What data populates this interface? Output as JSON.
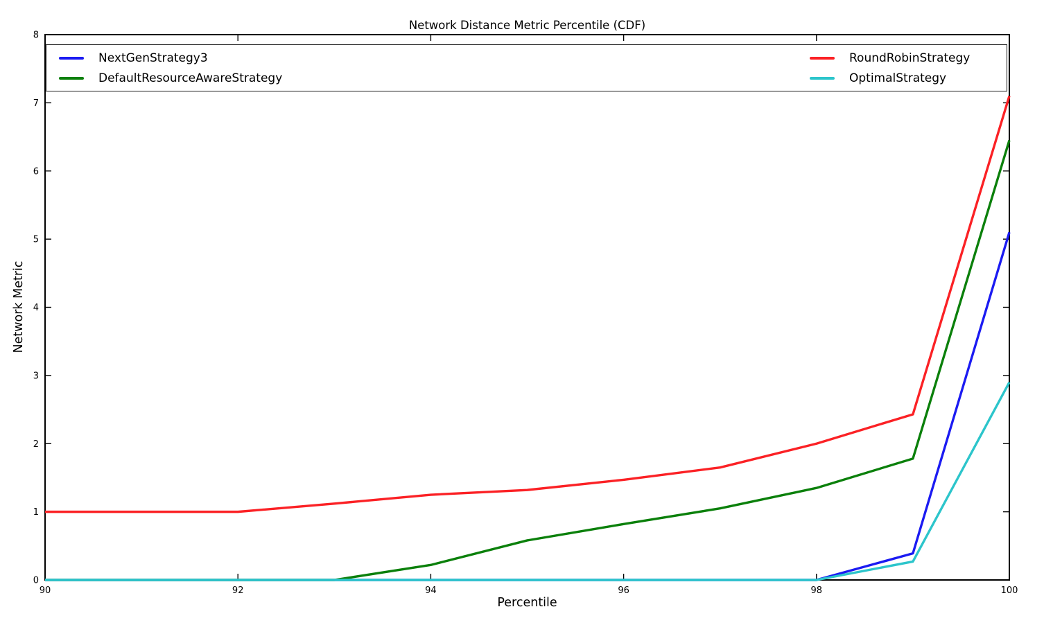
{
  "chart_data": {
    "type": "line",
    "title": "Network Distance Metric Percentile (CDF)",
    "xlabel": "Percentile",
    "ylabel": "Network Metric",
    "xlim": [
      90,
      100
    ],
    "ylim": [
      0,
      8
    ],
    "x_ticks": [
      90,
      92,
      94,
      96,
      98,
      100
    ],
    "y_ticks": [
      0,
      1,
      2,
      3,
      4,
      5,
      6,
      7,
      8
    ],
    "grid": false,
    "legend_position": "top-inside, full plot width, two columns",
    "x": [
      90,
      91,
      92,
      93,
      94,
      95,
      96,
      97,
      98,
      99,
      100
    ],
    "series": [
      {
        "name": "NextGenStrategy3",
        "color": "#1b1bf2",
        "values": [
          0,
          0,
          0,
          0,
          0,
          0,
          0,
          0,
          0,
          0.39,
          5.1
        ]
      },
      {
        "name": "DefaultResourceAwareStrategy",
        "color": "#0b800b",
        "values": [
          0,
          0,
          0,
          0,
          0.22,
          0.58,
          0.82,
          1.05,
          1.35,
          1.78,
          6.45
        ]
      },
      {
        "name": "RoundRobinStrategy",
        "color": "#fb2125",
        "values": [
          1.0,
          1.0,
          1.0,
          1.12,
          1.25,
          1.32,
          1.47,
          1.65,
          2.0,
          2.43,
          7.1
        ]
      },
      {
        "name": "OptimalStrategy",
        "color": "#2cc5cb",
        "values": [
          0,
          0,
          0,
          0,
          0,
          0,
          0,
          0,
          0,
          0.27,
          2.9
        ]
      }
    ],
    "legend_columns": [
      [
        "NextGenStrategy3",
        "DefaultResourceAwareStrategy"
      ],
      [
        "RoundRobinStrategy",
        "OptimalStrategy"
      ]
    ],
    "axis_color": "#000000",
    "line_width": 3.4
  }
}
